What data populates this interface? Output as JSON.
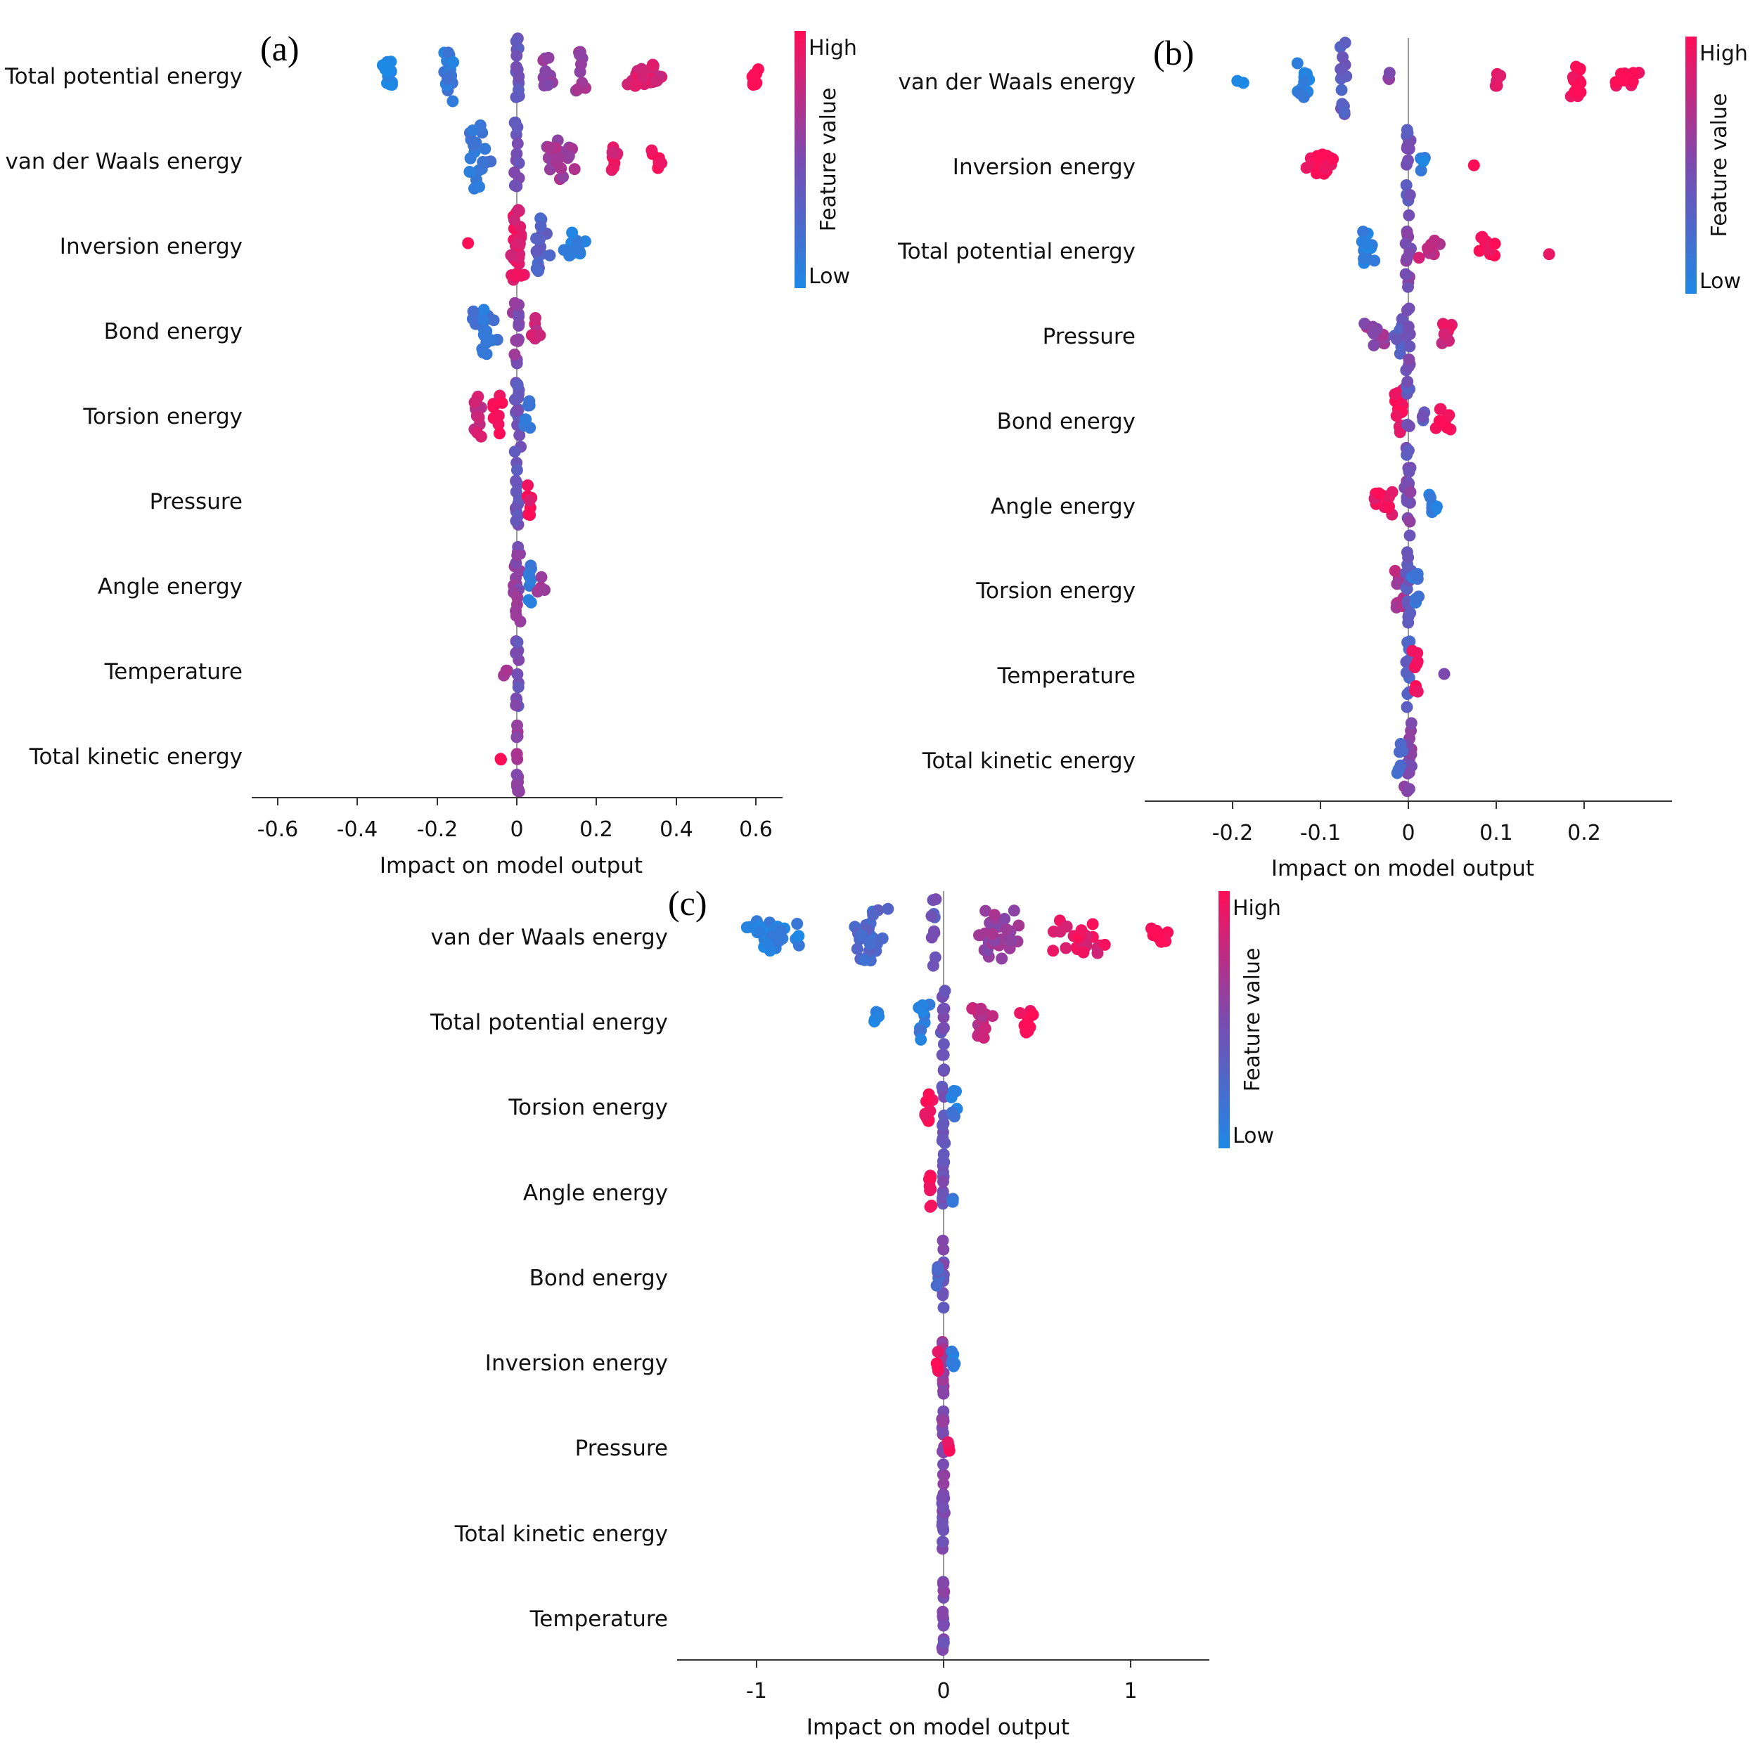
{
  "colors": {
    "low": "#1e88e5",
    "high": "#ff0d57",
    "zero_line": "#999999",
    "axis": "#333333"
  },
  "chart_data": [
    {
      "panel_label": "(a)",
      "type": "scatter",
      "subtype": "shap_beeswarm",
      "xlabel": "Impact on model output",
      "xlim": [
        -0.66,
        0.66
      ],
      "xticks": [
        -0.6,
        -0.4,
        -0.2,
        0,
        0.2,
        0.4,
        0.6
      ],
      "xtick_labels": [
        "-0.6",
        "-0.4",
        "-0.2",
        "0",
        "0.2",
        "0.4",
        "0.6"
      ],
      "colorbar": {
        "label": "Feature value",
        "high_label": "High",
        "low_label": "Low"
      },
      "features": [
        {
          "name": "Total potential energy",
          "clusters": [
            {
              "x": -0.32,
              "spread": 0.03,
              "n": 14,
              "color": 0.0,
              "height": 0.55
            },
            {
              "x": -0.17,
              "spread": 0.035,
              "n": 18,
              "color": 0.1,
              "height": 0.7
            },
            {
              "x": 0.0,
              "spread": 0.01,
              "n": 14,
              "color": 0.4,
              "height": 1.0
            },
            {
              "x": 0.07,
              "spread": 0.03,
              "n": 10,
              "color": 0.55,
              "height": 0.45
            },
            {
              "x": 0.16,
              "spread": 0.02,
              "n": 10,
              "color": 0.65,
              "height": 0.6
            },
            {
              "x": 0.32,
              "spread": 0.08,
              "n": 30,
              "color": 0.85,
              "height": 0.3
            },
            {
              "x": 0.59,
              "spread": 0.03,
              "n": 10,
              "color": 1.0,
              "height": 0.25
            }
          ]
        },
        {
          "name": "van der Waals energy",
          "clusters": [
            {
              "x": -0.1,
              "spread": 0.05,
              "n": 20,
              "color": 0.15,
              "height": 0.9
            },
            {
              "x": 0.0,
              "spread": 0.015,
              "n": 12,
              "color": 0.45,
              "height": 1.0
            },
            {
              "x": 0.1,
              "spread": 0.06,
              "n": 22,
              "color": 0.65,
              "height": 0.5
            },
            {
              "x": 0.24,
              "spread": 0.03,
              "n": 10,
              "color": 0.9,
              "height": 0.3
            },
            {
              "x": 0.35,
              "spread": 0.03,
              "n": 8,
              "color": 1.0,
              "height": 0.25
            }
          ]
        },
        {
          "name": "Inversion energy",
          "clusters": [
            {
              "x": -0.12,
              "spread": 0.005,
              "n": 1,
              "color": 1.0,
              "height": 0.1
            },
            {
              "x": 0.0,
              "spread": 0.03,
              "n": 30,
              "color": 0.9,
              "height": 1.0
            },
            {
              "x": 0.06,
              "spread": 0.03,
              "n": 16,
              "color": 0.3,
              "height": 0.7
            },
            {
              "x": 0.14,
              "spread": 0.05,
              "n": 14,
              "color": 0.05,
              "height": 0.3
            }
          ]
        },
        {
          "name": "Bond energy",
          "clusters": [
            {
              "x": -0.08,
              "spread": 0.04,
              "n": 20,
              "color": 0.15,
              "height": 0.65
            },
            {
              "x": 0.0,
              "spread": 0.015,
              "n": 14,
              "color": 0.55,
              "height": 1.0
            },
            {
              "x": 0.05,
              "spread": 0.03,
              "n": 8,
              "color": 0.8,
              "height": 0.3
            }
          ]
        },
        {
          "name": "Torsion energy",
          "clusters": [
            {
              "x": -0.1,
              "spread": 0.03,
              "n": 14,
              "color": 0.8,
              "height": 0.6
            },
            {
              "x": -0.05,
              "spread": 0.02,
              "n": 8,
              "color": 1.0,
              "height": 0.5
            },
            {
              "x": 0.0,
              "spread": 0.02,
              "n": 16,
              "color": 0.4,
              "height": 1.0
            },
            {
              "x": 0.03,
              "spread": 0.02,
              "n": 6,
              "color": 0.1,
              "height": 0.4
            }
          ]
        },
        {
          "name": "Pressure",
          "clusters": [
            {
              "x": 0.0,
              "spread": 0.01,
              "n": 14,
              "color": 0.4,
              "height": 1.0
            },
            {
              "x": 0.03,
              "spread": 0.012,
              "n": 8,
              "color": 0.95,
              "height": 0.4
            }
          ]
        },
        {
          "name": "Angle energy",
          "clusters": [
            {
              "x": 0.0,
              "spread": 0.015,
              "n": 18,
              "color": 0.55,
              "height": 1.0
            },
            {
              "x": 0.03,
              "spread": 0.015,
              "n": 8,
              "color": 0.1,
              "height": 0.5
            },
            {
              "x": 0.06,
              "spread": 0.015,
              "n": 4,
              "color": 0.7,
              "height": 0.2
            }
          ]
        },
        {
          "name": "Temperature",
          "clusters": [
            {
              "x": 0.0,
              "spread": 0.008,
              "n": 16,
              "color": 0.45,
              "height": 1.0
            },
            {
              "x": -0.03,
              "spread": 0.01,
              "n": 3,
              "color": 0.6,
              "height": 0.2
            }
          ]
        },
        {
          "name": "Total kinetic energy",
          "clusters": [
            {
              "x": 0.0,
              "spread": 0.008,
              "n": 16,
              "color": 0.6,
              "height": 1.0
            },
            {
              "x": -0.04,
              "spread": 0.005,
              "n": 2,
              "color": 1.0,
              "height": 0.1
            }
          ]
        }
      ]
    },
    {
      "panel_label": "(b)",
      "type": "scatter",
      "subtype": "shap_beeswarm",
      "xlabel": "Impact on model output",
      "xlim": [
        -0.3,
        0.3
      ],
      "xticks": [
        -0.2,
        -0.1,
        0,
        0.1,
        0.2
      ],
      "xtick_labels": [
        "-0.2",
        "-0.1",
        "0",
        "0.1",
        "0.2"
      ],
      "colorbar": {
        "label": "Feature value",
        "high_label": "High",
        "low_label": "Low"
      },
      "features": [
        {
          "name": "van der Waals energy",
          "clusters": [
            {
              "x": -0.19,
              "spread": 0.008,
              "n": 2,
              "color": 0.0,
              "height": 0.1
            },
            {
              "x": -0.12,
              "spread": 0.015,
              "n": 14,
              "color": 0.05,
              "height": 0.5
            },
            {
              "x": -0.075,
              "spread": 0.01,
              "n": 14,
              "color": 0.35,
              "height": 1.0
            },
            {
              "x": -0.02,
              "spread": 0.01,
              "n": 3,
              "color": 0.55,
              "height": 0.15
            },
            {
              "x": 0.1,
              "spread": 0.012,
              "n": 5,
              "color": 0.85,
              "height": 0.15
            },
            {
              "x": 0.19,
              "spread": 0.013,
              "n": 16,
              "color": 1.0,
              "height": 0.45
            },
            {
              "x": 0.25,
              "spread": 0.03,
              "n": 14,
              "color": 1.0,
              "height": 0.15
            }
          ]
        },
        {
          "name": "Inversion energy",
          "clusters": [
            {
              "x": -0.1,
              "spread": 0.03,
              "n": 24,
              "color": 1.0,
              "height": 0.25
            },
            {
              "x": 0.0,
              "spread": 0.006,
              "n": 14,
              "color": 0.4,
              "height": 1.0
            },
            {
              "x": 0.015,
              "spread": 0.01,
              "n": 5,
              "color": 0.05,
              "height": 0.2
            },
            {
              "x": 0.075,
              "spread": 0.003,
              "n": 1,
              "color": 1.0,
              "height": 0.1
            }
          ]
        },
        {
          "name": "Total potential energy",
          "clusters": [
            {
              "x": -0.045,
              "spread": 0.015,
              "n": 14,
              "color": 0.05,
              "height": 0.5
            },
            {
              "x": 0.0,
              "spread": 0.006,
              "n": 14,
              "color": 0.5,
              "height": 1.0
            },
            {
              "x": 0.025,
              "spread": 0.02,
              "n": 8,
              "color": 0.75,
              "height": 0.25
            },
            {
              "x": 0.09,
              "spread": 0.02,
              "n": 12,
              "color": 1.0,
              "height": 0.3
            },
            {
              "x": 0.16,
              "spread": 0.003,
              "n": 1,
              "color": 1.0,
              "height": 0.1
            }
          ]
        },
        {
          "name": "Pressure",
          "clusters": [
            {
              "x": -0.04,
              "spread": 0.02,
              "n": 14,
              "color": 0.6,
              "height": 0.35
            },
            {
              "x": -0.01,
              "spread": 0.01,
              "n": 10,
              "color": 0.35,
              "height": 0.5
            },
            {
              "x": 0.0,
              "spread": 0.006,
              "n": 12,
              "color": 0.45,
              "height": 1.0
            },
            {
              "x": 0.045,
              "spread": 0.015,
              "n": 10,
              "color": 0.85,
              "height": 0.25
            }
          ]
        },
        {
          "name": "Bond energy",
          "clusters": [
            {
              "x": -0.01,
              "spread": 0.01,
              "n": 18,
              "color": 0.95,
              "height": 0.9
            },
            {
              "x": 0.0,
              "spread": 0.005,
              "n": 10,
              "color": 0.4,
              "height": 1.0
            },
            {
              "x": 0.04,
              "spread": 0.012,
              "n": 10,
              "color": 1.0,
              "height": 0.25
            },
            {
              "x": 0.015,
              "spread": 0.005,
              "n": 3,
              "color": 0.4,
              "height": 0.15
            }
          ]
        },
        {
          "name": "Angle energy",
          "clusters": [
            {
              "x": -0.03,
              "spread": 0.02,
              "n": 14,
              "color": 0.95,
              "height": 0.3
            },
            {
              "x": 0.0,
              "spread": 0.006,
              "n": 14,
              "color": 0.5,
              "height": 1.0
            },
            {
              "x": 0.028,
              "spread": 0.01,
              "n": 8,
              "color": 0.05,
              "height": 0.25
            }
          ]
        },
        {
          "name": "Torsion energy",
          "clusters": [
            {
              "x": -0.01,
              "spread": 0.012,
              "n": 12,
              "color": 0.7,
              "height": 0.5
            },
            {
              "x": 0.0,
              "spread": 0.006,
              "n": 14,
              "color": 0.4,
              "height": 1.0
            },
            {
              "x": 0.01,
              "spread": 0.012,
              "n": 8,
              "color": 0.15,
              "height": 0.4
            }
          ]
        },
        {
          "name": "Temperature",
          "clusters": [
            {
              "x": 0.0,
              "spread": 0.005,
              "n": 14,
              "color": 0.3,
              "height": 1.0
            },
            {
              "x": 0.008,
              "spread": 0.006,
              "n": 8,
              "color": 0.95,
              "height": 0.6
            },
            {
              "x": 0.04,
              "spread": 0.003,
              "n": 1,
              "color": 0.55,
              "height": 0.1
            }
          ]
        },
        {
          "name": "Total kinetic energy",
          "clusters": [
            {
              "x": 0.0,
              "spread": 0.008,
              "n": 18,
              "color": 0.55,
              "height": 1.0
            },
            {
              "x": -0.01,
              "spread": 0.008,
              "n": 6,
              "color": 0.2,
              "height": 0.4
            }
          ]
        }
      ]
    },
    {
      "panel_label": "(c)",
      "type": "scatter",
      "subtype": "shap_beeswarm",
      "xlabel": "Impact on model output",
      "xlim": [
        -1.42,
        1.42
      ],
      "xticks": [
        -1,
        0,
        1
      ],
      "xtick_labels": [
        "-1",
        "0",
        "1"
      ],
      "colorbar": {
        "label": "Feature value",
        "high_label": "High",
        "low_label": "Low"
      },
      "features": [
        {
          "name": "van der Waals energy",
          "clusters": [
            {
              "x": -0.9,
              "spread": 0.25,
              "n": 30,
              "color": 0.05,
              "height": 0.4
            },
            {
              "x": -0.4,
              "spread": 0.15,
              "n": 26,
              "color": 0.25,
              "height": 0.7
            },
            {
              "x": -0.05,
              "spread": 0.03,
              "n": 10,
              "color": 0.4,
              "height": 1.0
            },
            {
              "x": 0.3,
              "spread": 0.2,
              "n": 30,
              "color": 0.6,
              "height": 0.7
            },
            {
              "x": 0.75,
              "spread": 0.22,
              "n": 26,
              "color": 0.9,
              "height": 0.45
            },
            {
              "x": 1.15,
              "spread": 0.12,
              "n": 10,
              "color": 1.0,
              "height": 0.25
            }
          ]
        },
        {
          "name": "Total potential energy",
          "clusters": [
            {
              "x": -0.35,
              "spread": 0.05,
              "n": 6,
              "color": 0.0,
              "height": 0.2
            },
            {
              "x": -0.1,
              "spread": 0.06,
              "n": 10,
              "color": 0.1,
              "height": 0.5
            },
            {
              "x": 0.0,
              "spread": 0.02,
              "n": 14,
              "color": 0.45,
              "height": 1.0
            },
            {
              "x": 0.2,
              "spread": 0.08,
              "n": 16,
              "color": 0.75,
              "height": 0.5
            },
            {
              "x": 0.45,
              "spread": 0.08,
              "n": 12,
              "color": 1.0,
              "height": 0.3
            }
          ]
        },
        {
          "name": "Torsion energy",
          "clusters": [
            {
              "x": -0.08,
              "spread": 0.03,
              "n": 10,
              "color": 0.95,
              "height": 0.4
            },
            {
              "x": 0.0,
              "spread": 0.015,
              "n": 14,
              "color": 0.45,
              "height": 1.0
            },
            {
              "x": 0.06,
              "spread": 0.02,
              "n": 6,
              "color": 0.1,
              "height": 0.4
            }
          ]
        },
        {
          "name": "Angle energy",
          "clusters": [
            {
              "x": -0.07,
              "spread": 0.025,
              "n": 10,
              "color": 0.95,
              "height": 0.4
            },
            {
              "x": 0.0,
              "spread": 0.01,
              "n": 14,
              "color": 0.45,
              "height": 1.0
            },
            {
              "x": 0.05,
              "spread": 0.01,
              "n": 4,
              "color": 0.1,
              "height": 0.3
            }
          ]
        },
        {
          "name": "Bond energy",
          "clusters": [
            {
              "x": 0.0,
              "spread": 0.01,
              "n": 14,
              "color": 0.45,
              "height": 1.0
            },
            {
              "x": -0.03,
              "spread": 0.01,
              "n": 6,
              "color": 0.3,
              "height": 0.4
            }
          ]
        },
        {
          "name": "Inversion energy",
          "clusters": [
            {
              "x": 0.0,
              "spread": 0.01,
              "n": 14,
              "color": 0.6,
              "height": 1.0
            },
            {
              "x": 0.05,
              "spread": 0.02,
              "n": 6,
              "color": 0.05,
              "height": 0.3
            },
            {
              "x": -0.03,
              "spread": 0.01,
              "n": 4,
              "color": 0.95,
              "height": 0.3
            }
          ]
        },
        {
          "name": "Pressure",
          "clusters": [
            {
              "x": 0.0,
              "spread": 0.01,
              "n": 16,
              "color": 0.55,
              "height": 1.0
            },
            {
              "x": 0.03,
              "spread": 0.01,
              "n": 3,
              "color": 0.95,
              "height": 0.3
            }
          ]
        },
        {
          "name": "Total kinetic energy",
          "clusters": [
            {
              "x": 0.0,
              "spread": 0.01,
              "n": 16,
              "color": 0.5,
              "height": 1.0
            }
          ]
        },
        {
          "name": "Temperature",
          "clusters": [
            {
              "x": 0.0,
              "spread": 0.008,
              "n": 16,
              "color": 0.5,
              "height": 1.0
            }
          ]
        }
      ]
    }
  ]
}
